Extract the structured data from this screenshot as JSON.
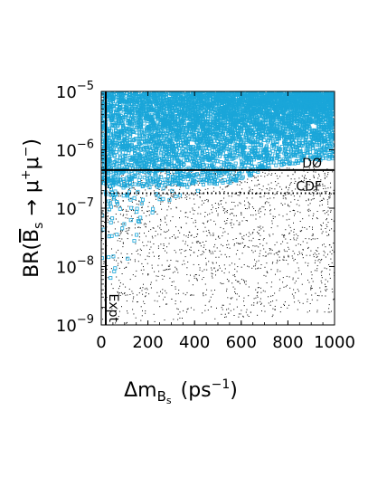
{
  "chart_data": {
    "type": "scatter",
    "xlabel": {
      "text": "Δm",
      "sub": "B",
      "subsub": "s",
      "unit": "(ps",
      "unit_exp": "−1",
      "unit_close": ")"
    },
    "ylabel": {
      "text": "BR(",
      "b": "B",
      "sub": "s",
      "arrow": " → μ",
      "sup1": "+",
      "mu2": "μ",
      "sup2": "−",
      "close": ")"
    },
    "xlim": [
      0,
      1000
    ],
    "ylim_log10": [
      -9,
      -5
    ],
    "yscale": "log",
    "x_ticks": [
      {
        "value": 0,
        "label": "0"
      },
      {
        "value": 200,
        "label": "200"
      },
      {
        "value": 400,
        "label": "400"
      },
      {
        "value": 600,
        "label": "600"
      },
      {
        "value": 800,
        "label": "800"
      },
      {
        "value": 1000,
        "label": "1000"
      }
    ],
    "y_ticks": [
      {
        "exp": -5,
        "base": "10",
        "sup": "−5"
      },
      {
        "exp": -6,
        "base": "10",
        "sup": "−6"
      },
      {
        "exp": -7,
        "base": "10",
        "sup": "−7"
      },
      {
        "exp": -8,
        "base": "10",
        "sup": "−8"
      },
      {
        "exp": -9,
        "base": "10",
        "sup": "−9"
      }
    ],
    "reference_lines": [
      {
        "label": "DØ",
        "axis": "y",
        "value": 4.5e-07,
        "style": "solid"
      },
      {
        "label": "CDF",
        "axis": "y",
        "value": 1.8e-07,
        "style": "dotted"
      },
      {
        "label": "Expt",
        "axis": "x",
        "value": 0,
        "style": "solid"
      }
    ],
    "series": [
      {
        "marker": "open-square",
        "color": "#1aa6d9",
        "upper_log10": -5.0,
        "lower_log10_at_x": [
          [
            0,
            -9.0
          ],
          [
            50,
            -8.6
          ],
          [
            100,
            -8.2
          ],
          [
            200,
            -7.6
          ],
          [
            300,
            -7.2
          ],
          [
            400,
            -6.9
          ],
          [
            500,
            -6.7
          ],
          [
            600,
            -6.5
          ],
          [
            700,
            -6.35
          ],
          [
            800,
            -6.25
          ],
          [
            1000,
            -6.15
          ]
        ]
      },
      {
        "marker": "dot",
        "color": "#000000",
        "upper_log10": -6.3,
        "lower_log10_at_x": [
          [
            0,
            -9.0
          ],
          [
            1000,
            -8.8
          ]
        ]
      }
    ]
  }
}
